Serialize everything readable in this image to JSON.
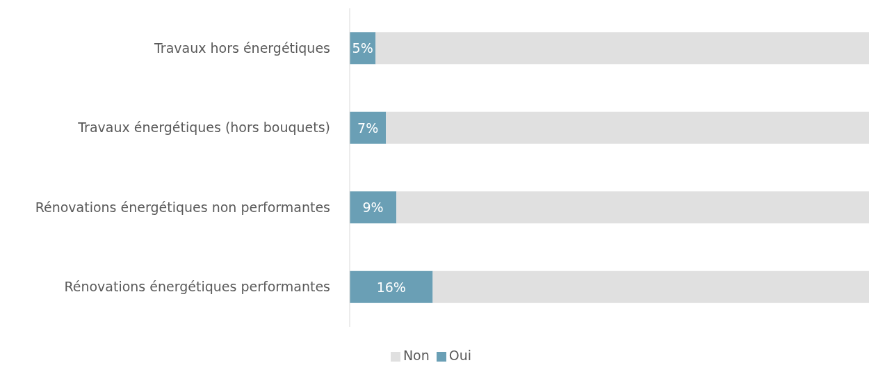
{
  "chart_data": {
    "type": "bar",
    "orientation": "horizontal",
    "stacked": true,
    "categories": [
      "Travaux hors énergétiques",
      "Travaux énergétiques (hors bouquets)",
      "Rénovations énergétiques non performantes",
      "Rénovations énergétiques performantes"
    ],
    "series": [
      {
        "name": "Oui",
        "color": "#6a9fb5",
        "values": [
          5,
          7,
          9,
          16
        ],
        "value_labels": [
          "5%",
          "7%",
          "9%",
          "16%"
        ]
      },
      {
        "name": "Non",
        "color": "#e0e0e0",
        "values": [
          95,
          93,
          91,
          84
        ]
      }
    ],
    "xlim": [
      0,
      100
    ],
    "tick_labels": "y",
    "grid": false,
    "legend": "bottom"
  }
}
